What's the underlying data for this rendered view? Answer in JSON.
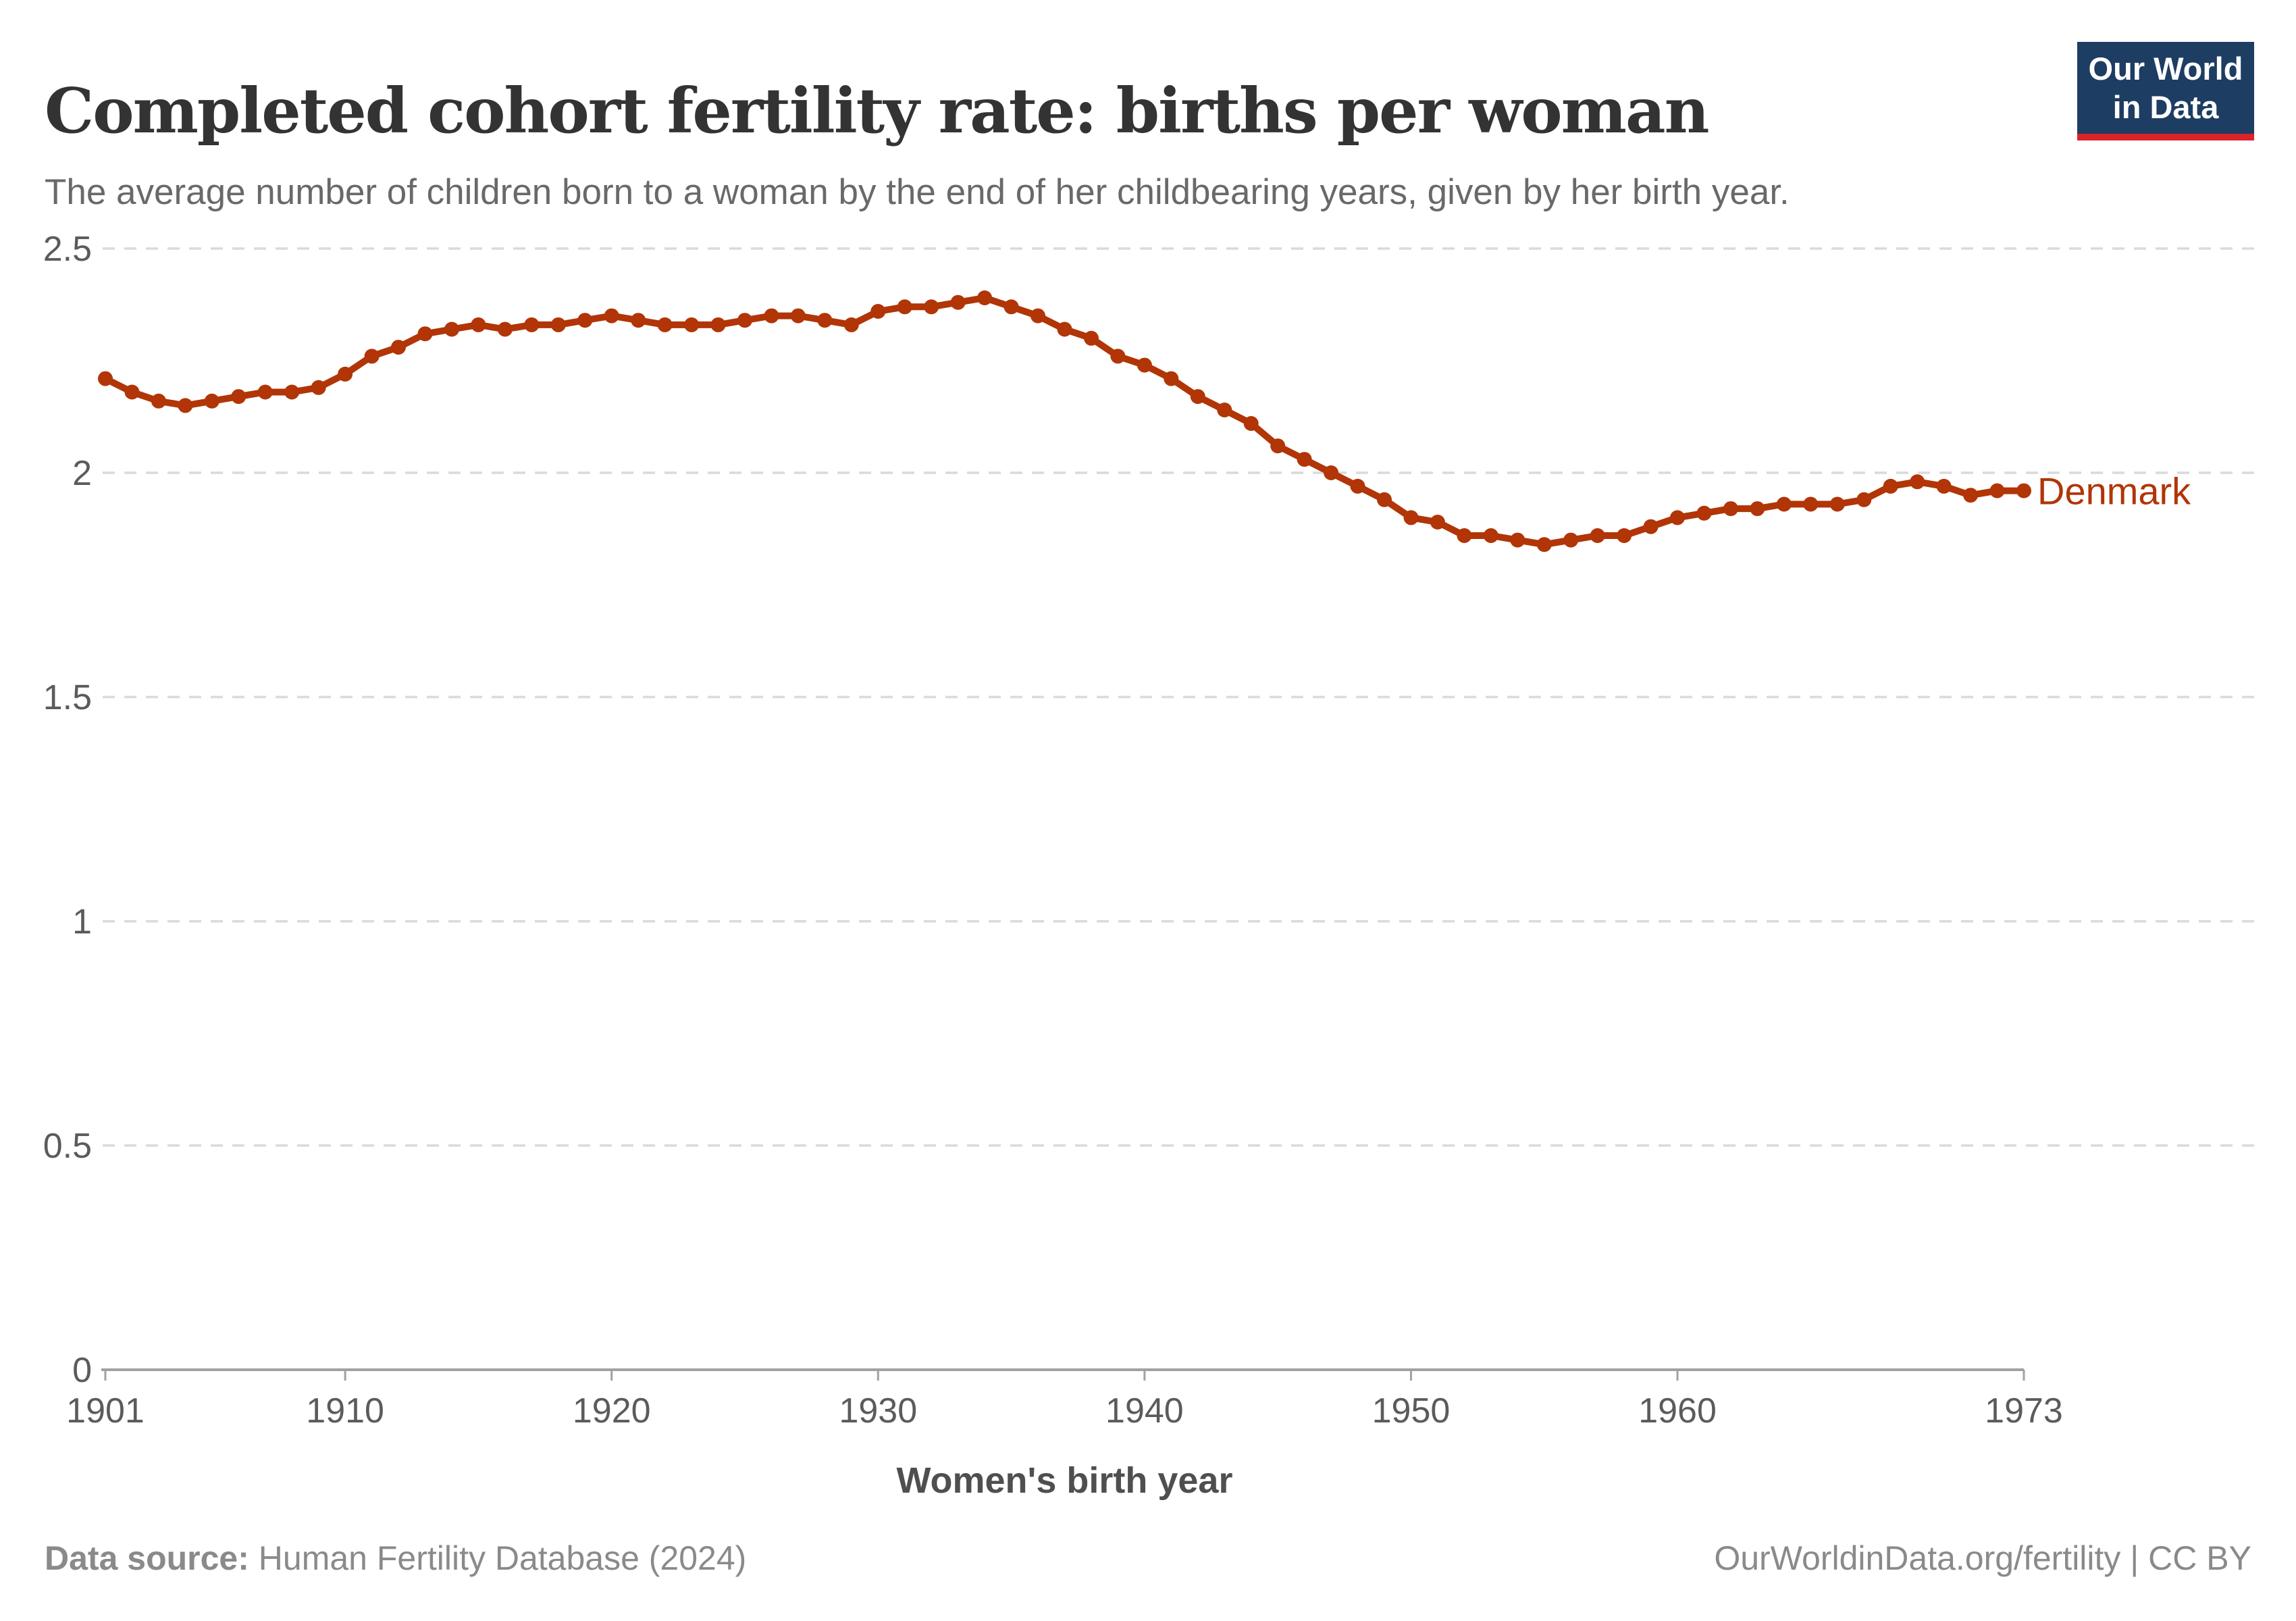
{
  "header": {
    "title": "Completed cohort fertility rate: births per woman",
    "subtitle": "The average number of children born to a woman by the end of her childbearing years, given by her birth year.",
    "logo": {
      "line1": "Our World",
      "line2": "in Data"
    }
  },
  "chart_data": {
    "type": "line",
    "title": "Completed cohort fertility rate: births per woman",
    "subtitle": "The average number of children born to a woman by the end of her childbearing years, given by her birth year.",
    "xlabel": "Women's birth year",
    "ylabel": "",
    "xlim": [
      1901,
      1973
    ],
    "ylim": [
      0,
      2.5
    ],
    "x_ticks": [
      1901,
      1910,
      1920,
      1930,
      1940,
      1950,
      1960,
      1973
    ],
    "y_ticks": [
      0,
      0.5,
      1,
      1.5,
      2,
      2.5
    ],
    "grid": "horizontal dashed gridlines on, no vertical gridlines",
    "legend_position": "label at right end of line",
    "colors": {
      "grid": "#dadada",
      "axis": "#a1a1a1",
      "tick_text": "#5b5b5b"
    },
    "series": [
      {
        "name": "Denmark",
        "color": "#b13507",
        "x": [
          1901,
          1902,
          1903,
          1904,
          1905,
          1906,
          1907,
          1908,
          1909,
          1910,
          1911,
          1912,
          1913,
          1914,
          1915,
          1916,
          1917,
          1918,
          1919,
          1920,
          1921,
          1922,
          1923,
          1924,
          1925,
          1926,
          1927,
          1928,
          1929,
          1930,
          1931,
          1932,
          1933,
          1934,
          1935,
          1936,
          1937,
          1938,
          1939,
          1940,
          1941,
          1942,
          1943,
          1944,
          1945,
          1946,
          1947,
          1948,
          1949,
          1950,
          1951,
          1952,
          1953,
          1954,
          1955,
          1956,
          1957,
          1958,
          1959,
          1960,
          1961,
          1962,
          1963,
          1964,
          1965,
          1966,
          1967,
          1968,
          1969,
          1970,
          1971,
          1972,
          1973
        ],
        "values": [
          2.21,
          2.18,
          2.16,
          2.15,
          2.16,
          2.17,
          2.18,
          2.18,
          2.19,
          2.22,
          2.26,
          2.28,
          2.31,
          2.32,
          2.33,
          2.32,
          2.33,
          2.33,
          2.34,
          2.35,
          2.34,
          2.33,
          2.33,
          2.33,
          2.34,
          2.35,
          2.35,
          2.34,
          2.33,
          2.36,
          2.37,
          2.37,
          2.38,
          2.39,
          2.37,
          2.35,
          2.32,
          2.3,
          2.26,
          2.24,
          2.21,
          2.17,
          2.14,
          2.11,
          2.06,
          2.03,
          2.0,
          1.97,
          1.94,
          1.9,
          1.89,
          1.86,
          1.86,
          1.85,
          1.84,
          1.85,
          1.86,
          1.86,
          1.88,
          1.9,
          1.91,
          1.92,
          1.92,
          1.93,
          1.93,
          1.93,
          1.94,
          1.97,
          1.98,
          1.97,
          1.95,
          1.96,
          1.96
        ]
      }
    ]
  },
  "footer": {
    "source_bold": "Data source:",
    "source_rest": " Human Fertility Database (2024)",
    "credit": "OurWorldinData.org/fertility | CC BY"
  }
}
